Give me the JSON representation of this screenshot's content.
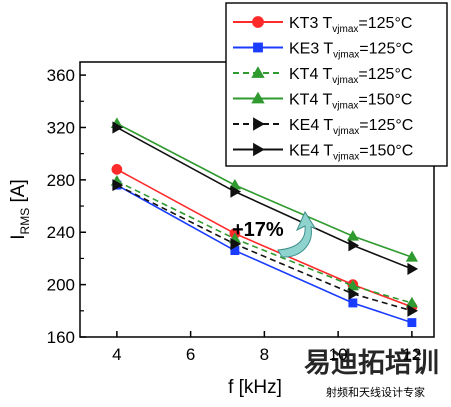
{
  "chart_data": {
    "type": "line",
    "xlabel": "f [kHz]",
    "ylabel": {
      "main": "I",
      "sub": "RMS",
      "rest": " [A]"
    },
    "xlim": [
      3,
      12.6
    ],
    "ylim": [
      160,
      370
    ],
    "xticks": [
      4,
      6,
      8,
      10,
      12
    ],
    "yticks": [
      160,
      200,
      240,
      280,
      320,
      360
    ],
    "grid": false,
    "legend": {
      "placement": "top-right"
    },
    "annotation": "+17%",
    "series": [
      {
        "name": "KT3",
        "tvj": "125°C",
        "color": "#ff2a2a",
        "marker": "circle",
        "dash": "solid",
        "x": [
          4,
          7.2,
          10.4,
          12
        ],
        "y": [
          288,
          239,
          200,
          183
        ]
      },
      {
        "name": "KE3",
        "tvj": "125°C",
        "color": "#1a3cff",
        "marker": "square",
        "dash": "solid",
        "x": [
          4,
          7.2,
          10.4,
          12
        ],
        "y": [
          276,
          226,
          186,
          171
        ]
      },
      {
        "name": "KT4",
        "tvj": "125°C",
        "color": "#2f9a2f",
        "marker": "triangle",
        "dash": "dashed",
        "x": [
          4,
          7.2,
          10.4,
          12
        ],
        "y": [
          279,
          235,
          199,
          186
        ]
      },
      {
        "name": "KT4",
        "tvj": "150°C",
        "color": "#2f9a2f",
        "marker": "triangle",
        "dash": "solid",
        "x": [
          4,
          7.2,
          10.4,
          12
        ],
        "y": [
          323,
          276,
          237,
          221
        ]
      },
      {
        "name": "KE4",
        "tvj": "125°C",
        "color": "#111111",
        "marker": "triangle-right",
        "dash": "dashed",
        "x": [
          4,
          7.2,
          10.4,
          12
        ],
        "y": [
          276,
          231,
          193,
          180
        ]
      },
      {
        "name": "KE4",
        "tvj": "150°C",
        "color": "#111111",
        "marker": "triangle-right",
        "dash": "solid",
        "x": [
          4,
          7.2,
          10.4,
          12
        ],
        "y": [
          320,
          271,
          230,
          212
        ]
      }
    ],
    "legend_entry_format": {
      "t_main": "T",
      "t_sub": "vjmax",
      "eq": "="
    }
  },
  "watermark": {
    "cn_text": "易迪拓培训",
    "sub_text": "射频和天线设计专家"
  }
}
